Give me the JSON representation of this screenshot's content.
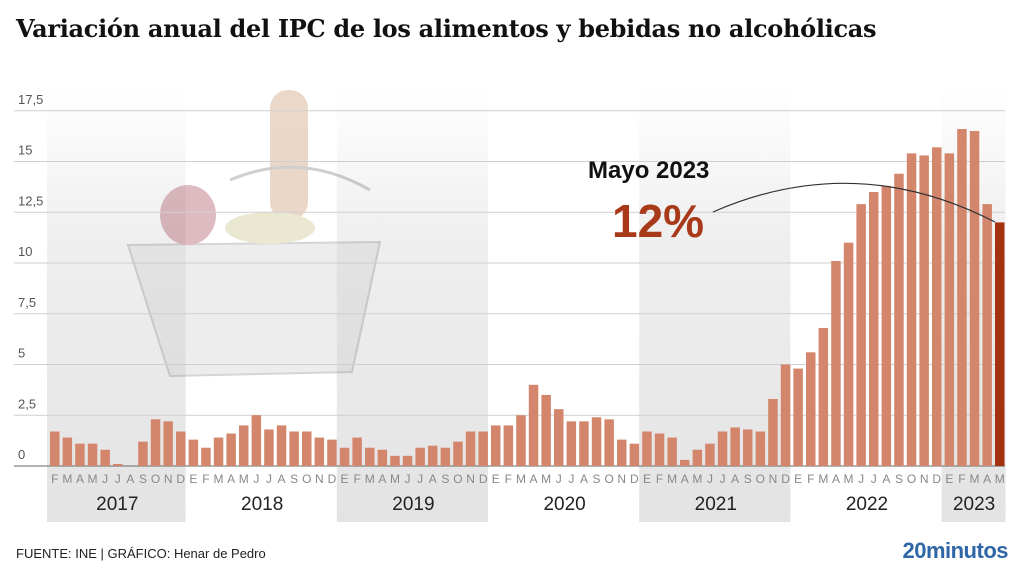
{
  "title": "Variación anual del IPC de los alimentos y bebidas no alcohólicas",
  "footer": {
    "source": "FUENTE: INE  |  GRÁFICO: Henar de Pedro",
    "logo": "20minutos"
  },
  "colors": {
    "bar": "#d4866c",
    "highlight_bar": "#a3330f",
    "annotation_value": "#a83a1a",
    "year_band": "#e3e3e3",
    "logo": "#2f66a6"
  },
  "decorative_image": "shopping-basket-with-groceries",
  "chart_data": {
    "type": "bar",
    "title": "Variación anual del IPC de los alimentos y bebidas no alcohólicas",
    "xlabel": "",
    "ylabel": "",
    "ylim": [
      0,
      17.5
    ],
    "yticks": [
      "0",
      "2,5",
      "5",
      "7,5",
      "10",
      "12,5",
      "15",
      "17,5"
    ],
    "grid": true,
    "years": [
      {
        "label": "2017",
        "months": [
          "F",
          "M",
          "A",
          "M",
          "J",
          "J",
          "A",
          "S",
          "O",
          "N",
          "D"
        ],
        "values": [
          1.7,
          1.4,
          1.1,
          1.1,
          0.8,
          0.1,
          0.0,
          1.2,
          2.3,
          2.2,
          1.7
        ],
        "shaded": true
      },
      {
        "label": "2018",
        "months": [
          "E",
          "F",
          "M",
          "A",
          "M",
          "J",
          "J",
          "A",
          "S",
          "O",
          "N",
          "D"
        ],
        "values": [
          1.3,
          0.9,
          1.4,
          1.6,
          2.0,
          2.5,
          1.8,
          2.0,
          1.7,
          1.7,
          1.4,
          1.3
        ],
        "shaded": false
      },
      {
        "label": "2019",
        "months": [
          "E",
          "F",
          "M",
          "A",
          "M",
          "J",
          "J",
          "A",
          "S",
          "O",
          "N",
          "D"
        ],
        "values": [
          0.9,
          1.4,
          0.9,
          0.8,
          0.5,
          0.5,
          0.9,
          1.0,
          0.9,
          1.2,
          1.7,
          1.7
        ],
        "shaded": true
      },
      {
        "label": "2020",
        "months": [
          "E",
          "F",
          "M",
          "A",
          "M",
          "J",
          "J",
          "A",
          "S",
          "O",
          "N",
          "D"
        ],
        "values": [
          2.0,
          2.0,
          2.5,
          4.0,
          3.5,
          2.8,
          2.2,
          2.2,
          2.4,
          2.3,
          1.3,
          1.1
        ],
        "shaded": false
      },
      {
        "label": "2021",
        "months": [
          "E",
          "F",
          "M",
          "A",
          "M",
          "J",
          "J",
          "A",
          "S",
          "O",
          "N",
          "D"
        ],
        "values": [
          1.7,
          1.6,
          1.4,
          0.3,
          0.8,
          1.1,
          1.7,
          1.9,
          1.8,
          1.7,
          3.3,
          5.0
        ],
        "shaded": true
      },
      {
        "label": "2022",
        "months": [
          "E",
          "F",
          "M",
          "A",
          "M",
          "J",
          "J",
          "A",
          "S",
          "O",
          "N",
          "D"
        ],
        "values": [
          4.8,
          5.6,
          6.8,
          10.1,
          11.0,
          12.9,
          13.5,
          13.8,
          14.4,
          15.4,
          15.3,
          15.7
        ],
        "shaded": false
      },
      {
        "label": "2023",
        "months": [
          "E",
          "F",
          "M",
          "A",
          "M"
        ],
        "values": [
          15.4,
          16.6,
          16.5,
          12.9,
          12.0
        ],
        "shaded": true
      }
    ],
    "annotation": {
      "label": "Mayo 2023",
      "value": "12%"
    }
  }
}
